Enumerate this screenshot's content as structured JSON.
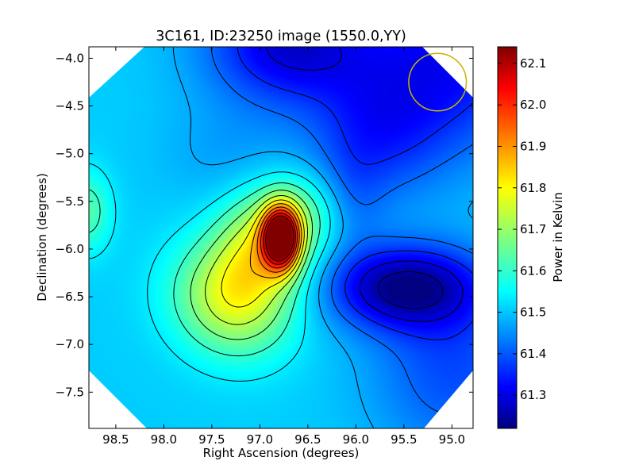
{
  "chart_data": {
    "type": "heatmap",
    "title": "3C161, ID:23250 image (1550.0,YY)",
    "xlabel": "Right Ascension (degrees)",
    "ylabel": "Declination (degrees)",
    "colorbar_label": "Power in Kelvin",
    "colormap": "jet",
    "xlim": [
      98.78,
      94.78
    ],
    "ylim": [
      -7.88,
      -3.88
    ],
    "clim": [
      61.22,
      62.14
    ],
    "x_ticks": [
      98.5,
      98.0,
      97.5,
      97.0,
      96.5,
      96.0,
      95.5,
      95.0
    ],
    "x_tick_labels": [
      "98.5",
      "98.0",
      "97.5",
      "97.0",
      "96.5",
      "96.0",
      "95.5",
      "95.0"
    ],
    "y_ticks": [
      -4.0,
      -4.5,
      -5.0,
      -5.5,
      -6.0,
      -6.5,
      -7.0,
      -7.5
    ],
    "y_tick_labels": [
      "−4.0",
      "−4.5",
      "−5.0",
      "−5.5",
      "−6.0",
      "−6.5",
      "−7.0",
      "−7.5"
    ],
    "colorbar_ticks": [
      61.3,
      61.4,
      61.5,
      61.6,
      61.7,
      61.8,
      61.9,
      62.0,
      62.1
    ],
    "colorbar_tick_labels": [
      "61.3",
      "61.4",
      "61.5",
      "61.6",
      "61.7",
      "61.8",
      "61.9",
      "62.0",
      "62.1"
    ],
    "features": [
      {
        "kind": "peak",
        "ra": 96.78,
        "dec": -5.88,
        "value": 62.14
      },
      {
        "kind": "extension",
        "ra": 97.3,
        "dec": -6.6,
        "value": 61.78
      },
      {
        "kind": "local-max",
        "ra": 98.75,
        "dec": -5.6,
        "value": 61.63
      },
      {
        "kind": "minimum",
        "ra": 95.5,
        "dec": -6.4,
        "value": 61.24
      },
      {
        "kind": "low-region",
        "ra": 96.7,
        "dec": -3.95,
        "value": 61.3
      },
      {
        "kind": "low-region",
        "ra": 95.0,
        "dec": -4.0,
        "value": 61.34
      }
    ],
    "contours": "black, evenly spaced levels",
    "beam": {
      "ra": 95.15,
      "dec": -4.25,
      "radius_deg": 0.3,
      "color": "#c8b400"
    },
    "grid": false,
    "colors": {
      "contour": "#000000",
      "beam": "#c8b400"
    }
  }
}
